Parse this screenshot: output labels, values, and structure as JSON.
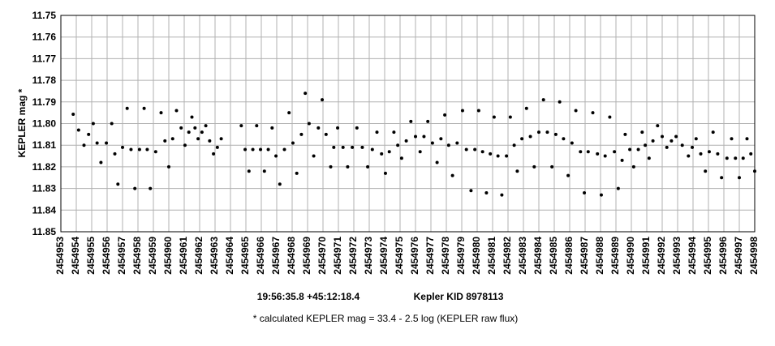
{
  "chart_data": {
    "type": "scatter",
    "ylabel": "KEPLER mag *",
    "subtitle_left": "19:56:35.8 +45:12:18.4",
    "subtitle_right": "Kepler KID 8978113",
    "footnote": "* calculated KEPLER mag = 33.4 - 2.5 log (KEPLER raw flux)",
    "color": "#000000",
    "grid": true,
    "xlim": [
      2454953,
      2454998
    ],
    "ylim": [
      11.85,
      11.75
    ],
    "yticks": [
      11.75,
      11.76,
      11.77,
      11.78,
      11.79,
      {
        "value": 11.8,
        "label": "11.80"
      },
      11.81,
      11.82,
      11.83,
      11.84,
      11.85
    ],
    "xticks": [
      2454953,
      2454954,
      2454955,
      2454956,
      2454957,
      2454958,
      2454959,
      2454960,
      2454961,
      2454962,
      2454963,
      2454964,
      2454965,
      2454966,
      2454967,
      2454968,
      2454969,
      2454970,
      2454971,
      2454972,
      2454973,
      2454974,
      2454975,
      2454976,
      2454977,
      2454978,
      2454979,
      2454980,
      2454981,
      2454982,
      2454983,
      2454984,
      2454985,
      2454986,
      2454987,
      2454988,
      2454989,
      2454990,
      2454991,
      2454992,
      2454993,
      2454994,
      2454995,
      2454996,
      2454997,
      2454998
    ],
    "x": [
      2454953.8,
      2454954.15,
      2454954.5,
      2454954.8,
      2454955.1,
      2454955.35,
      2454955.6,
      2454955.95,
      2454956.3,
      2454956.5,
      2454956.7,
      2454957.0,
      2454957.3,
      2454957.55,
      2454957.8,
      2454958.1,
      2454958.4,
      2454958.6,
      2454958.8,
      2454959.15,
      2454959.5,
      2454959.75,
      2454960.0,
      2454960.25,
      2454960.5,
      2454960.8,
      2454961.05,
      2454961.3,
      2454961.5,
      2454961.7,
      2454961.9,
      2454962.15,
      2454962.4,
      2454962.65,
      2454962.9,
      2454963.15,
      2454963.4,
      2454964.7,
      2454964.95,
      2454965.2,
      2454965.45,
      2454965.7,
      2454965.95,
      2454966.2,
      2454966.45,
      2454966.7,
      2454966.95,
      2454967.2,
      2454967.5,
      2454967.8,
      2454968.05,
      2454968.3,
      2454968.6,
      2454968.85,
      2454969.1,
      2454969.4,
      2454969.7,
      2454969.95,
      2454970.2,
      2454970.5,
      2454970.7,
      2454970.95,
      2454971.3,
      2454971.6,
      2454971.9,
      2454972.2,
      2454972.55,
      2454972.9,
      2454973.2,
      2454973.5,
      2454973.8,
      2454974.05,
      2454974.3,
      2454974.6,
      2454974.85,
      2454975.1,
      2454975.4,
      2454975.7,
      2454976.0,
      2454976.3,
      2454976.55,
      2454976.8,
      2454977.1,
      2454977.4,
      2454977.65,
      2454977.9,
      2454978.15,
      2454978.4,
      2454978.7,
      2454979.05,
      2454979.3,
      2454979.6,
      2454979.85,
      2454980.1,
      2454980.35,
      2454980.6,
      2454980.85,
      2454981.1,
      2454981.35,
      2454981.6,
      2454981.9,
      2454982.15,
      2454982.4,
      2454982.6,
      2454982.9,
      2454983.2,
      2454983.45,
      2454983.7,
      2454984.0,
      2454984.3,
      2454984.55,
      2454984.85,
      2454985.1,
      2454985.35,
      2454985.6,
      2454985.9,
      2454986.15,
      2454986.4,
      2454986.7,
      2454986.95,
      2454987.2,
      2454987.5,
      2454987.8,
      2454988.05,
      2454988.3,
      2454988.6,
      2454988.9,
      2454989.15,
      2454989.4,
      2454989.6,
      2454989.9,
      2454990.15,
      2454990.45,
      2454990.7,
      2454990.9,
      2454991.15,
      2454991.4,
      2454991.7,
      2454992.0,
      2454992.3,
      2454992.6,
      2454992.9,
      2454993.3,
      2454993.7,
      2454993.95,
      2454994.2,
      2454994.5,
      2454994.8,
      2454995.05,
      2454995.3,
      2454995.6,
      2454995.85,
      2454996.2,
      2454996.5,
      2454996.75,
      2454997.0,
      2454997.25,
      2454997.5,
      2454997.75,
      2454998.0
    ],
    "values": [
      11.7957,
      11.803,
      11.81,
      11.805,
      11.8,
      11.809,
      11.818,
      11.809,
      11.8,
      11.814,
      11.828,
      11.811,
      11.793,
      11.812,
      11.83,
      11.812,
      11.793,
      11.812,
      11.83,
      11.813,
      11.795,
      11.808,
      11.82,
      11.807,
      11.794,
      11.802,
      11.81,
      11.804,
      11.797,
      11.802,
      11.807,
      11.804,
      11.801,
      11.808,
      11.814,
      11.811,
      11.807,
      11.801,
      11.812,
      11.822,
      11.812,
      11.801,
      11.812,
      11.822,
      11.812,
      11.802,
      11.815,
      11.828,
      11.812,
      11.795,
      11.809,
      11.823,
      11.805,
      11.786,
      11.8,
      11.815,
      11.802,
      11.789,
      11.805,
      11.82,
      11.811,
      11.802,
      11.811,
      11.82,
      11.811,
      11.802,
      11.811,
      11.82,
      11.812,
      11.804,
      11.814,
      11.823,
      11.813,
      11.804,
      11.81,
      11.816,
      11.808,
      11.799,
      11.806,
      11.813,
      11.806,
      11.799,
      11.809,
      11.818,
      11.807,
      11.796,
      11.81,
      11.824,
      11.809,
      11.794,
      11.812,
      11.831,
      11.812,
      11.794,
      11.813,
      11.832,
      11.814,
      11.797,
      11.815,
      11.833,
      11.815,
      11.797,
      11.81,
      11.822,
      11.807,
      11.793,
      11.806,
      11.82,
      11.804,
      11.789,
      11.804,
      11.82,
      11.805,
      11.79,
      11.807,
      11.824,
      11.809,
      11.794,
      11.813,
      11.832,
      11.813,
      11.795,
      11.814,
      11.833,
      11.815,
      11.797,
      11.813,
      11.83,
      11.817,
      11.805,
      11.812,
      11.82,
      11.812,
      11.804,
      11.81,
      11.816,
      11.808,
      11.801,
      11.806,
      11.811,
      11.808,
      11.806,
      11.81,
      11.815,
      11.811,
      11.807,
      11.814,
      11.822,
      11.813,
      11.804,
      11.814,
      11.825,
      11.816,
      11.807,
      11.816,
      11.825,
      11.816,
      11.807,
      11.814,
      11.822
    ]
  }
}
